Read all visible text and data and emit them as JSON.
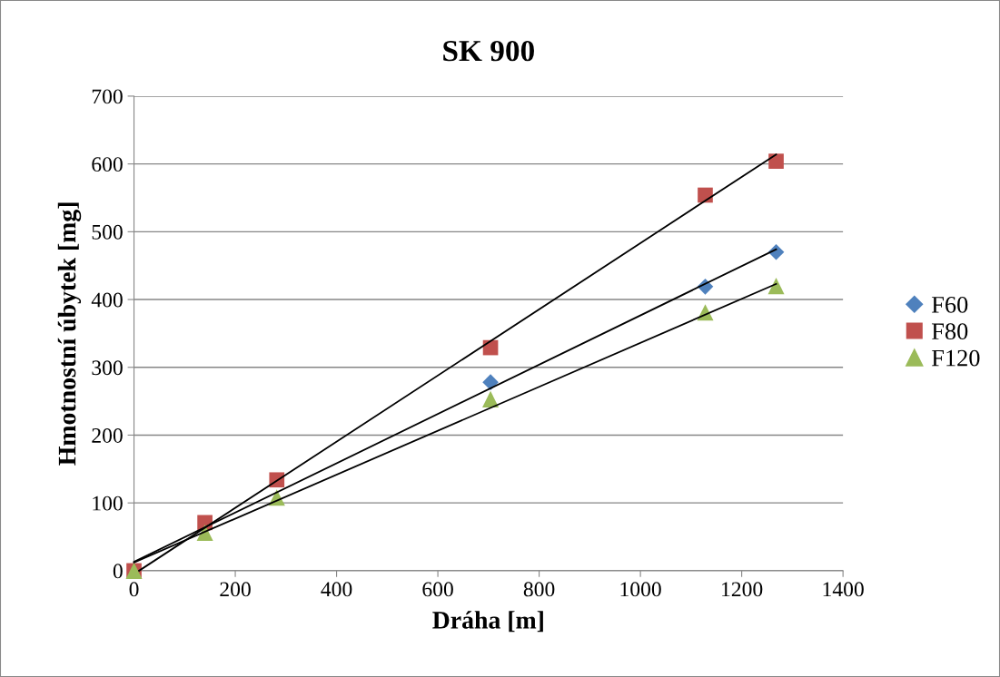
{
  "chart_data": {
    "type": "scatter",
    "title": "SK 900",
    "xlabel": "Dráha [m]",
    "ylabel": "Hmotnostní úbytek [mg]",
    "x": [
      0,
      140,
      282,
      704,
      1128,
      1268
    ],
    "series": [
      {
        "name": "F60",
        "color": "#4f81bd",
        "marker": "diamond",
        "values": [
          null,
          null,
          null,
          278,
          419,
          470
        ]
      },
      {
        "name": "F80",
        "color": "#c0504d",
        "marker": "square",
        "values": [
          0,
          71,
          134,
          329,
          554,
          604
        ]
      },
      {
        "name": "F120",
        "color": "#9bbb59",
        "marker": "triangle",
        "values": [
          0,
          56,
          108,
          253,
          381,
          420
        ]
      },
      {
        "type": "line",
        "color": "#000000",
        "marker": "none",
        "x": [
          0,
          1268
        ],
        "values": [
          13,
          474
        ]
      },
      {
        "type": "line",
        "color": "#000000",
        "marker": "none",
        "x": [
          10,
          1268
        ],
        "values": [
          0,
          614
        ]
      },
      {
        "type": "line",
        "color": "#000000",
        "marker": "none",
        "x": [
          0,
          1268
        ],
        "values": [
          12,
          423
        ]
      }
    ],
    "xlim": [
      0,
      1400
    ],
    "xticks": [
      0,
      200,
      400,
      600,
      800,
      1000,
      1200,
      1400
    ],
    "ylim": [
      0,
      700
    ],
    "yticks": [
      0,
      100,
      200,
      300,
      400,
      500,
      600,
      700
    ],
    "grid": "y",
    "legend": "right"
  }
}
